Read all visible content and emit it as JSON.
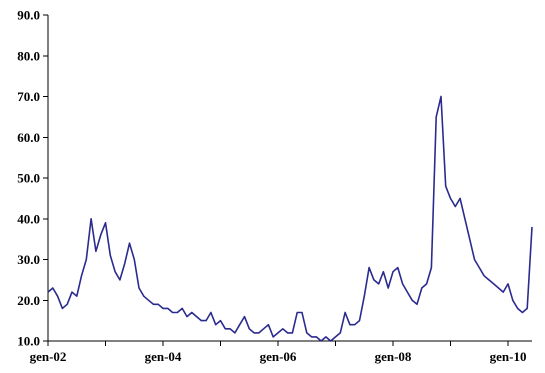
{
  "chart_data": {
    "type": "line",
    "title": "",
    "xlabel": "",
    "ylabel": "",
    "ylim": [
      10,
      90
    ],
    "yticks": [
      "10.0",
      "20.0",
      "30.0",
      "40.0",
      "50.0",
      "60.0",
      "70.0",
      "80.0",
      "90.0"
    ],
    "xticks": [
      "gen-02",
      "gen-04",
      "gen-06",
      "gen-08",
      "gen-10"
    ],
    "xlim": [
      "2002-01",
      "2010-06"
    ],
    "grid": false,
    "legend": "none",
    "colors": {
      "series": "#2b2b8f",
      "axis": "#000000"
    },
    "series": [
      {
        "x": [
          "2002-01",
          "2002-02",
          "2002-03",
          "2002-04",
          "2002-05",
          "2002-06",
          "2002-07",
          "2002-08",
          "2002-09",
          "2002-10",
          "2002-11",
          "2002-12",
          "2003-01",
          "2003-02",
          "2003-03",
          "2003-04",
          "2003-05",
          "2003-06",
          "2003-07",
          "2003-08",
          "2003-09",
          "2003-10",
          "2003-11",
          "2003-12",
          "2004-01",
          "2004-02",
          "2004-03",
          "2004-04",
          "2004-05",
          "2004-06",
          "2004-07",
          "2004-08",
          "2004-09",
          "2004-10",
          "2004-11",
          "2004-12",
          "2005-01",
          "2005-02",
          "2005-03",
          "2005-04",
          "2005-05",
          "2005-06",
          "2005-07",
          "2005-08",
          "2005-09",
          "2005-10",
          "2005-11",
          "2005-12",
          "2006-01",
          "2006-02",
          "2006-03",
          "2006-04",
          "2006-05",
          "2006-06",
          "2006-07",
          "2006-08",
          "2006-09",
          "2006-10",
          "2006-11",
          "2006-12",
          "2007-01",
          "2007-02",
          "2007-03",
          "2007-04",
          "2007-05",
          "2007-06",
          "2007-07",
          "2007-08",
          "2007-09",
          "2007-10",
          "2007-11",
          "2007-12",
          "2008-01",
          "2008-02",
          "2008-03",
          "2008-04",
          "2008-05",
          "2008-06",
          "2008-07",
          "2008-08",
          "2008-09",
          "2008-10",
          "2008-11",
          "2008-12",
          "2009-01",
          "2009-02",
          "2009-03",
          "2009-04",
          "2009-05",
          "2009-06",
          "2009-07",
          "2009-08",
          "2009-09",
          "2009-10",
          "2009-11",
          "2009-12",
          "2010-01",
          "2010-02",
          "2010-03",
          "2010-04",
          "2010-05",
          "2010-06"
        ],
        "values": [
          22,
          23,
          21,
          18,
          19,
          22,
          21,
          26,
          30,
          40,
          32,
          36,
          39,
          31,
          27,
          25,
          29,
          34,
          30,
          23,
          21,
          20,
          19,
          19,
          18,
          18,
          17,
          17,
          18,
          16,
          17,
          16,
          15,
          15,
          17,
          14,
          15,
          13,
          13,
          12,
          14,
          16,
          13,
          12,
          12,
          13,
          14,
          11,
          12,
          13,
          12,
          12,
          17,
          17,
          12,
          11,
          11,
          10,
          11,
          10,
          11,
          12,
          17,
          14,
          14,
          15,
          21,
          28,
          25,
          24,
          27,
          23,
          27,
          28,
          24,
          22,
          20,
          19,
          23,
          24,
          28,
          65,
          70,
          48,
          45,
          43,
          45,
          40,
          35,
          30,
          28,
          26,
          25,
          24,
          23,
          22,
          24,
          20,
          18,
          17,
          18,
          38
        ]
      }
    ]
  }
}
